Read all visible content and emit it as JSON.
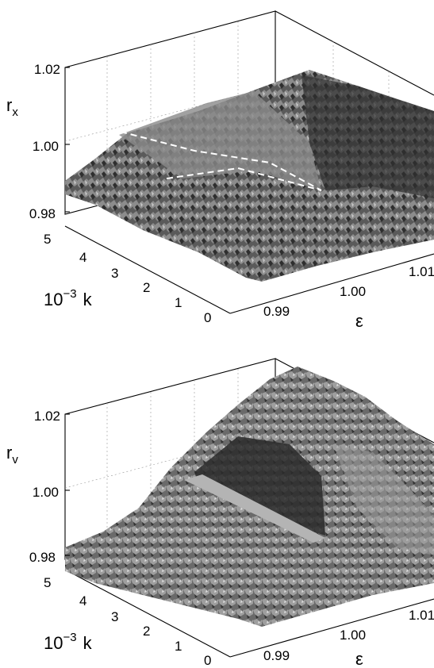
{
  "chart_data": [
    {
      "type": "surface",
      "panel": "top",
      "zlabel": {
        "base": "r",
        "sub": "x"
      },
      "ylabel": {
        "prefix": "10",
        "exp": "−3",
        "var": "k"
      },
      "xlabel": "ε",
      "x_ticks": [
        "0.99",
        "1.00",
        "1.01"
      ],
      "y_ticks": [
        "0",
        "1",
        "2",
        "3",
        "4",
        "5"
      ],
      "z_ticks": [
        "0.98",
        "1.00",
        "1.02"
      ],
      "xlim": [
        0.985,
        1.015
      ],
      "ylim": [
        0,
        5
      ],
      "zlim": [
        0.978,
        1.022
      ],
      "grid": true,
      "annotations": [
        "white dashed boundary lines"
      ]
    },
    {
      "type": "surface",
      "panel": "bottom",
      "zlabel": {
        "base": "r",
        "sub": "v"
      },
      "ylabel": {
        "prefix": "10",
        "exp": "−3",
        "var": "k"
      },
      "xlabel": "ε",
      "x_ticks": [
        "0.99",
        "1.00",
        "1.01"
      ],
      "y_ticks": [
        "0",
        "1",
        "2",
        "3",
        "4",
        "5"
      ],
      "z_ticks": [
        "0.98",
        "1.00",
        "1.02"
      ],
      "xlim": [
        0.985,
        1.015
      ],
      "ylim": [
        0,
        5
      ],
      "zlim": [
        0.978,
        1.022
      ],
      "grid": true
    }
  ],
  "colors": {
    "surface_dark": "#3a3a3a",
    "surface_light": "#a0a0a0",
    "dashed": "#ffffff"
  }
}
